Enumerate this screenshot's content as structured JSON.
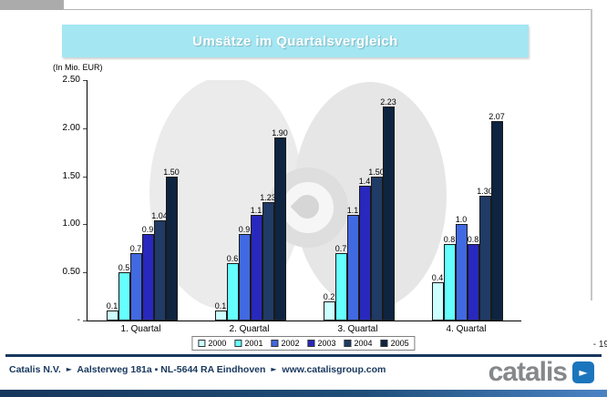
{
  "slide": {
    "title": "Umsätze im Quartalsvergleich",
    "unit_label": "(In Mio. EUR)",
    "page_number": "- 19",
    "footer": {
      "company": "Catalis N.V.",
      "separator": "►",
      "address": "Aalsterweg 181a ▪ NL-5644 RA Eindhoven",
      "website": "www.catalisgroup.com"
    },
    "logo": {
      "text": "catalis",
      "mark_glyph": "►",
      "mark_color": "#1b75bc"
    }
  },
  "chart_data": {
    "type": "bar",
    "title": "Umsätze im Quartalsvergleich",
    "ylabel": "(In Mio. EUR)",
    "ylim": [
      0,
      2.5
    ],
    "ytick_labels": [
      "2.50",
      "2.00",
      "1.50",
      "1.00",
      "0.50",
      "-"
    ],
    "grid": false,
    "legend_position": "bottom",
    "categories": [
      "1. Quartal",
      "2. Quartal",
      "3. Quartal",
      "4. Quartal"
    ],
    "series": [
      {
        "name": "2000",
        "color": "#ccffff",
        "values": [
          0.1,
          0.1,
          0.2,
          0.4
        ],
        "labels": [
          "0.1",
          "0.1",
          "0.2",
          "0.4"
        ]
      },
      {
        "name": "2001",
        "color": "#66ffff",
        "values": [
          0.5,
          0.6,
          0.7,
          0.8
        ],
        "labels": [
          "0.5",
          "0.6",
          "0.7",
          "0.8"
        ]
      },
      {
        "name": "2002",
        "color": "#4169e1",
        "values": [
          0.7,
          0.9,
          1.1,
          1.0
        ],
        "labels": [
          "0.7",
          "0.9",
          "1.1",
          "1.0"
        ]
      },
      {
        "name": "2003",
        "color": "#2828be",
        "values": [
          0.9,
          1.1,
          1.4,
          0.8
        ],
        "labels": [
          "0.9",
          "1.1",
          "1.4",
          "0.8"
        ]
      },
      {
        "name": "2004",
        "color": "#1f3b66",
        "values": [
          1.04,
          1.23,
          1.5,
          1.3
        ],
        "labels": [
          "1.04",
          "1.23",
          "1.50",
          "1.30"
        ]
      },
      {
        "name": "2005",
        "color": "#0e2440",
        "values": [
          1.5,
          1.9,
          2.23,
          2.07
        ],
        "labels": [
          "1.50",
          "1.90",
          "2.23",
          "2.07"
        ]
      }
    ]
  }
}
